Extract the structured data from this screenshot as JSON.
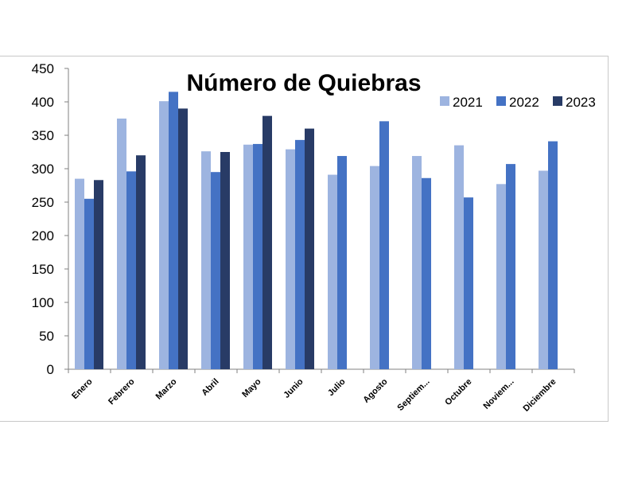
{
  "chart_data": {
    "type": "bar",
    "title": "Número de Quiebras",
    "categories": [
      "Enero",
      "Febrero",
      "Marzo",
      "Abril",
      "Mayo",
      "Junio",
      "Julio",
      "Agosto",
      "Septiem...",
      "Octubre",
      "Noviem...",
      "Diciembre"
    ],
    "series": [
      {
        "name": "2021",
        "color": "#9db4e0",
        "values": [
          285,
          375,
          401,
          326,
          336,
          329,
          291,
          304,
          319,
          335,
          277,
          297
        ]
      },
      {
        "name": "2022",
        "color": "#4472c4",
        "values": [
          255,
          296,
          415,
          295,
          337,
          343,
          319,
          371,
          286,
          257,
          307,
          341
        ]
      },
      {
        "name": "2023",
        "color": "#283b66",
        "values": [
          283,
          320,
          390,
          325,
          379,
          360,
          null,
          null,
          null,
          null,
          null,
          null
        ]
      }
    ],
    "ylim": [
      0,
      450
    ],
    "yticks": [
      0,
      50,
      100,
      150,
      200,
      250,
      300,
      350,
      400,
      450
    ],
    "xlabel": "",
    "ylabel": "",
    "legend": "top-right",
    "grid": false
  }
}
